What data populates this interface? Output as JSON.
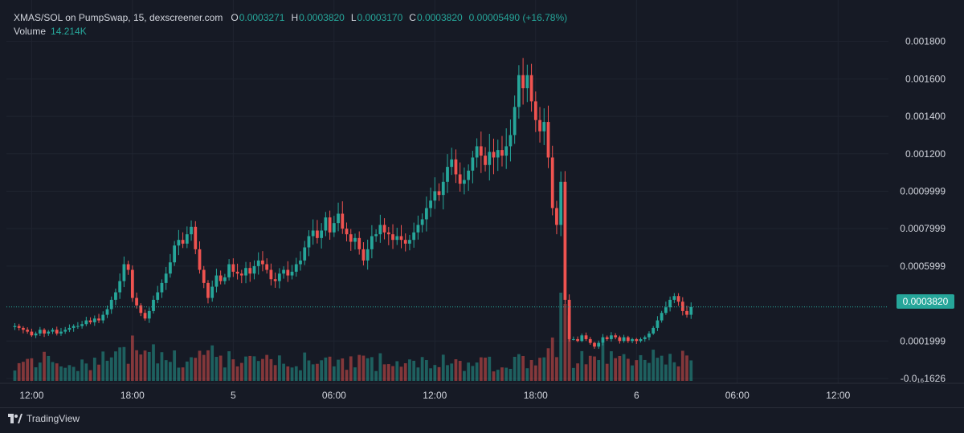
{
  "legend": {
    "symbol": "XMAS/SOL on PumpSwap, 15, dexscreener.com",
    "open_label": "O",
    "open": "0.0003271",
    "high_label": "H",
    "high": "0.0003820",
    "low_label": "L",
    "low": "0.0003170",
    "close_label": "C",
    "close": "0.0003820",
    "change": "0.00005490 (+16.78%)",
    "volume_label": "Volume",
    "volume_value": "14.214K"
  },
  "last_price": "0.0003820",
  "brand": "TradingView",
  "colors": {
    "up": "#26a69a",
    "down": "#ef5350",
    "background": "#161a25",
    "grid": "#1f2430",
    "text": "#d1d4dc"
  },
  "chart_data": {
    "type": "candlestick",
    "y_axis_ticks": [
      {
        "value": 0.0018,
        "label": "0.001800"
      },
      {
        "value": 0.0016,
        "label": "0.001600"
      },
      {
        "value": 0.0014,
        "label": "0.001400"
      },
      {
        "value": 0.0012,
        "label": "0.001200"
      },
      {
        "value": 0.001,
        "label": "0.0009999"
      },
      {
        "value": 0.0008,
        "label": "0.0007999"
      },
      {
        "value": 0.0006,
        "label": "0.0005999"
      },
      {
        "value": 0.0002,
        "label": "0.0001999"
      },
      {
        "value": -1.626e-07,
        "label": "-0.0₁₆1626"
      }
    ],
    "ylim": [
      -1.626e-07,
      0.00185
    ],
    "x_axis_ticks": [
      {
        "label": "12:00",
        "bar": 4
      },
      {
        "label": "18:00",
        "bar": 28
      },
      {
        "label": "5",
        "bar": 52
      },
      {
        "label": "06:00",
        "bar": 76
      },
      {
        "label": "12:00",
        "bar": 100
      },
      {
        "label": "18:00",
        "bar": 124
      },
      {
        "label": "6",
        "bar": 148
      },
      {
        "label": "06:00",
        "bar": 172
      },
      {
        "label": "12:00",
        "bar": 196
      }
    ],
    "x_range_bars": [
      -2,
      208
    ],
    "closes": [
      0.00028,
      0.00027,
      0.00026,
      0.00025,
      0.00023,
      0.00024,
      0.00026,
      0.00024,
      0.00025,
      0.00026,
      0.00024,
      0.00025,
      0.00026,
      0.00027,
      0.00028,
      0.00028,
      0.00029,
      0.00031,
      0.0003,
      0.00032,
      0.00031,
      0.00034,
      0.00037,
      0.00042,
      0.00046,
      0.00052,
      0.00061,
      0.00058,
      0.00043,
      0.00039,
      0.00035,
      0.00032,
      0.00036,
      0.00042,
      0.00046,
      0.00051,
      0.00056,
      0.00062,
      0.00071,
      0.00074,
      0.00072,
      0.00077,
      0.00081,
      0.00069,
      0.00058,
      0.00051,
      0.00043,
      0.00049,
      0.00055,
      0.00052,
      0.00054,
      0.00061,
      0.00057,
      0.00056,
      0.00055,
      0.00059,
      0.00056,
      0.0006,
      0.00063,
      0.00061,
      0.00058,
      0.00053,
      0.00052,
      0.00056,
      0.00058,
      0.00055,
      0.00057,
      0.00061,
      0.00063,
      0.0007,
      0.00076,
      0.00079,
      0.00075,
      0.00079,
      0.00086,
      0.00078,
      0.00083,
      0.00088,
      0.0008,
      0.00077,
      0.00073,
      0.00075,
      0.00069,
      0.00063,
      0.00069,
      0.00076,
      0.00077,
      0.00082,
      0.00078,
      0.00077,
      0.00074,
      0.00076,
      0.00074,
      0.00072,
      0.00074,
      0.00078,
      0.00082,
      0.00085,
      0.00091,
      0.00095,
      0.001,
      0.00098,
      0.00105,
      0.00113,
      0.00117,
      0.00109,
      0.00104,
      0.00106,
      0.00111,
      0.00118,
      0.00124,
      0.00119,
      0.00114,
      0.00121,
      0.00118,
      0.00122,
      0.00119,
      0.00124,
      0.0013,
      0.00145,
      0.00162,
      0.00155,
      0.00162,
      0.00148,
      0.00138,
      0.00132,
      0.00137,
      0.00118,
      0.00091,
      0.00082,
      0.00105,
      0.00042,
      0.00021,
      0.00021,
      0.0002,
      0.00023,
      0.00021,
      0.00019,
      0.00017,
      0.00019,
      0.00022,
      0.00021,
      0.00023,
      0.00022,
      0.0002,
      0.00022,
      0.0002,
      0.00021,
      0.0002,
      0.00021,
      0.00022,
      0.00024,
      0.00027,
      0.00031,
      0.00035,
      0.00038,
      0.00042,
      0.00044,
      0.00041,
      0.00036,
      0.00034,
      0.000382
    ],
    "volume_note": "volume histogram shown as bars along bottom of price pane"
  }
}
